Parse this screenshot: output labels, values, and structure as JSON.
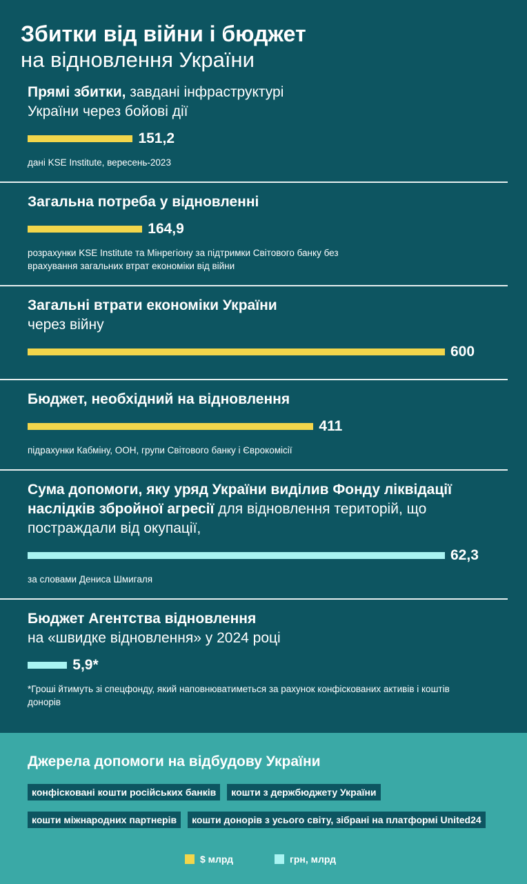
{
  "header": {
    "title": "Збитки від війни і бюджет",
    "subtitle": "на відновлення України"
  },
  "items": [
    {
      "title_bold": "Прямі збитки,",
      "title": "завдані інфраструктурі України через бойові дії",
      "value": 151.2,
      "value_label": "151,2",
      "color": "#f2d64b",
      "note": "дані KSE Institute, вересень-2023"
    },
    {
      "title_bold": "Загальна потреба у відновленні",
      "value": 164.9,
      "value_label": "164,9",
      "color": "#f2d64b",
      "note": "розрахунки KSE Institute та Мінрегіону за підтримки Світового банку без врахування загальних втрат економіки від війни"
    },
    {
      "title_bold": "Загальні втрати економіки України",
      "title": "через війну",
      "value": 600,
      "value_label": "600",
      "color": "#f2d64b"
    },
    {
      "title_bold": "Бюджет, необхідний на відновлення",
      "value": 411,
      "value_label": "411",
      "color": "#f2d64b",
      "note": "підрахунки Кабміну, ООН, групи Світового банку і Єврокомісії"
    },
    {
      "title_bold": "Сума допомоги, яку уряд України виділив Фонду ліквідації наслідків збройної агресії",
      "title": "для відновлення територій, що постраждали від окупації,",
      "value": 62.3,
      "value_label": "62,3",
      "color": "#a9f4f2",
      "note": "за словами Дениса Шмигаля"
    },
    {
      "title_bold": "Бюджет Агентства відновлення",
      "title": "на «швидке відновлення» у 2024 році",
      "value": 5.9,
      "value_label": "5,9*",
      "color": "#a9f4f2",
      "note": "*Гроші йтимуть зі спецфонду, який наповнюватиметься за рахунок конфіскованих активів і коштів донорів"
    }
  ],
  "sources": {
    "title": "Джерела допомоги на відбудову України",
    "tags": [
      "конфісковані кошти російських банків",
      "кошти з держбюджету України",
      "кошти міжнародних партнерів",
      "кошти донорів з усього світу, зібрані на платформі United24"
    ]
  },
  "legend": [
    {
      "label": "$ млрд",
      "color": "#f2d64b"
    },
    {
      "label": "грн, млрд",
      "color": "#a9f4f2"
    }
  ]
}
